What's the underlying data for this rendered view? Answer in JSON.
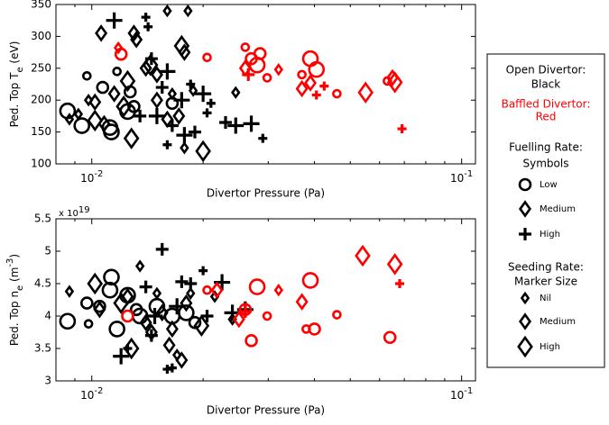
{
  "chart_data": [
    {
      "type": "scatter",
      "xlabel": "Divertor Pressure (Pa)",
      "ylabel": [
        {
          "text": "Ped. Top T"
        },
        {
          "text": "e",
          "shift": "sub"
        },
        {
          "text": " (eV)"
        }
      ],
      "xscale": "log",
      "xlim": [
        0.008,
        0.109
      ],
      "xticks": [
        {
          "value": 0.01,
          "label": "10",
          "exponent": "-2"
        },
        {
          "value": 0.1,
          "label": "10",
          "exponent": "-1"
        }
      ],
      "xminor_ticks": [
        0.009,
        0.02,
        0.03,
        0.04,
        0.05,
        0.06,
        0.07,
        0.08,
        0.09
      ],
      "ylim": [
        100,
        350
      ],
      "yticks": [
        100,
        150,
        200,
        250,
        300,
        350
      ],
      "grid": false,
      "series": [
        {
          "color": "#000000",
          "marker": "o",
          "x": [
            0.0086,
            0.0094,
            0.0097,
            0.0107,
            0.0112,
            0.0113,
            0.0125,
            0.0127,
            0.0117,
            0.013,
            0.0165
          ],
          "values": [
            183,
            160,
            238,
            220,
            157,
            150,
            182,
            213,
            245,
            190,
            195
          ],
          "sizes": [
            "large",
            "large",
            "small",
            "medium",
            "large",
            "large",
            "large",
            "medium",
            "small",
            "medium",
            "medium"
          ]
        },
        {
          "color": "#000000",
          "marker": "d",
          "x": [
            0.0087,
            0.0092,
            0.0098,
            0.0102,
            0.0106,
            0.0102,
            0.0108,
            0.0115,
            0.0122,
            0.0125,
            0.0128,
            0.0132,
            0.013,
            0.014,
            0.0144,
            0.015,
            0.016,
            0.0172,
            0.0175,
            0.0178,
            0.0178,
            0.0182,
            0.0165,
            0.0188,
            0.02,
            0.0245,
            0.015,
            0.016
          ],
          "values": [
            170,
            178,
            200,
            197,
            305,
            168,
            163,
            210,
            190,
            230,
            140,
            295,
            305,
            250,
            255,
            240,
            340,
            175,
            285,
            125,
            275,
            340,
            210,
            215,
            120,
            212,
            200,
            170
          ],
          "sizes": [
            "small",
            "small",
            "small",
            "medium",
            "medium",
            "large",
            "medium",
            "medium",
            "large",
            "large",
            "large",
            "medium",
            "medium",
            "medium",
            "large",
            "medium",
            "small",
            "medium",
            "large",
            "small",
            "medium",
            "small",
            "small",
            "small",
            "large",
            "small",
            "medium",
            "medium"
          ]
        },
        {
          "color": "#000000",
          "marker": "+",
          "x": [
            0.0115,
            0.014,
            0.0142,
            0.0145,
            0.016,
            0.015,
            0.0165,
            0.0175,
            0.0178,
            0.019,
            0.02,
            0.0205,
            0.021,
            0.023,
            0.0245,
            0.027,
            0.029,
            0.0135,
            0.0155,
            0.0185,
            0.016
          ],
          "values": [
            325,
            330,
            315,
            265,
            245,
            175,
            160,
            200,
            145,
            150,
            210,
            180,
            195,
            165,
            160,
            163,
            140,
            175,
            220,
            225,
            130
          ],
          "sizes": [
            "large",
            "small",
            "small",
            "medium",
            "large",
            "large",
            "medium",
            "large",
            "large",
            "medium",
            "large",
            "small",
            "small",
            "medium",
            "large",
            "large",
            "small",
            "medium",
            "medium",
            "small",
            "small"
          ]
        },
        {
          "color": "#ff0000",
          "marker": "o",
          "x": [
            0.012,
            0.0205,
            0.026,
            0.027,
            0.028,
            0.0285,
            0.0298,
            0.037,
            0.039,
            0.0405,
            0.046,
            0.063
          ],
          "values": [
            272,
            267,
            283,
            265,
            255,
            273,
            235,
            240,
            265,
            248,
            210,
            230
          ],
          "sizes": [
            "medium",
            "small",
            "small",
            "medium",
            "large",
            "medium",
            "small",
            "small",
            "large",
            "large",
            "small",
            "small"
          ]
        },
        {
          "color": "#ff0000",
          "marker": "d",
          "x": [
            0.0118,
            0.026,
            0.032,
            0.037,
            0.039,
            0.055,
            0.065,
            0.066
          ],
          "values": [
            282,
            250,
            248,
            218,
            227,
            212,
            235,
            228
          ],
          "sizes": [
            "small",
            "medium",
            "small",
            "medium",
            "medium",
            "large",
            "medium",
            "large"
          ]
        },
        {
          "color": "#ff0000",
          "marker": "+",
          "x": [
            0.0265,
            0.0405,
            0.0425,
            0.069
          ],
          "values": [
            240,
            208,
            222,
            155
          ],
          "sizes": [
            "medium",
            "small",
            "small",
            "small"
          ]
        }
      ]
    },
    {
      "type": "scatter",
      "xlabel": "Divertor Pressure (Pa)",
      "ylabel": [
        {
          "text": "Ped. Top n"
        },
        {
          "text": "e",
          "shift": "sub"
        },
        {
          "text": " (m"
        },
        {
          "text": "-3",
          "shift": "super"
        },
        {
          "text": ")"
        }
      ],
      "yscale_label": {
        "text": "x 10",
        "exponent": "19"
      },
      "xscale": "log",
      "xlim": [
        0.008,
        0.109
      ],
      "xticks": [
        {
          "value": 0.01,
          "label": "10",
          "exponent": "-2"
        },
        {
          "value": 0.1,
          "label": "10",
          "exponent": "-1"
        }
      ],
      "xminor_ticks": [
        0.009,
        0.02,
        0.03,
        0.04,
        0.05,
        0.06,
        0.07,
        0.08,
        0.09
      ],
      "ylim": [
        3,
        5.5
      ],
      "yticks": [
        3,
        3.5,
        4,
        4.5,
        5,
        5.5
      ],
      "grid": false,
      "series": [
        {
          "color": "#000000",
          "marker": "o",
          "x": [
            0.0086,
            0.0097,
            0.0098,
            0.0105,
            0.0112,
            0.0113,
            0.0117,
            0.0125,
            0.0132,
            0.0135,
            0.015,
            0.0165,
            0.018,
            0.019
          ],
          "values": [
            3.92,
            4.2,
            3.88,
            4.15,
            4.4,
            4.6,
            3.8,
            4.32,
            4.1,
            4.0,
            4.15,
            4.0,
            4.05,
            3.9
          ],
          "sizes": [
            "large",
            "medium",
            "small",
            "medium",
            "large",
            "large",
            "large",
            "large",
            "medium",
            "large",
            "large",
            "large",
            "large",
            "medium"
          ]
        },
        {
          "color": "#000000",
          "marker": "d",
          "x": [
            0.0087,
            0.0102,
            0.0105,
            0.012,
            0.0125,
            0.0128,
            0.0135,
            0.014,
            0.0145,
            0.015,
            0.0155,
            0.0162,
            0.0165,
            0.017,
            0.0175,
            0.018,
            0.0185,
            0.0198,
            0.024,
            0.0215
          ],
          "values": [
            4.38,
            4.5,
            4.1,
            4.2,
            4.3,
            3.5,
            4.77,
            3.9,
            3.75,
            4.35,
            4.05,
            3.55,
            3.8,
            3.4,
            3.32,
            4.2,
            4.35,
            3.85,
            3.95,
            4.3
          ],
          "sizes": [
            "small",
            "large",
            "medium",
            "large",
            "medium",
            "large",
            "small",
            "medium",
            "medium",
            "small",
            "medium",
            "medium",
            "medium",
            "small",
            "medium",
            "medium",
            "small",
            "large",
            "small",
            "small"
          ]
        },
        {
          "color": "#000000",
          "marker": "+",
          "x": [
            0.012,
            0.0125,
            0.014,
            0.0148,
            0.0155,
            0.016,
            0.0165,
            0.0175,
            0.0185,
            0.02,
            0.0205,
            0.0225,
            0.024,
            0.026,
            0.017,
            0.0145
          ],
          "values": [
            3.38,
            3.5,
            4.45,
            4.0,
            5.03,
            3.18,
            3.2,
            4.53,
            4.5,
            4.7,
            4.0,
            4.52,
            4.05,
            4.1,
            4.15,
            3.7
          ],
          "sizes": [
            "large",
            "small",
            "medium",
            "large",
            "medium",
            "small",
            "small",
            "medium",
            "medium",
            "small",
            "medium",
            "large",
            "large",
            "large",
            "large",
            "medium"
          ]
        },
        {
          "color": "#ff0000",
          "marker": "o",
          "x": [
            0.0125,
            0.0205,
            0.026,
            0.027,
            0.028,
            0.0298,
            0.038,
            0.039,
            0.04,
            0.046,
            0.064
          ],
          "values": [
            4.0,
            4.4,
            4.1,
            3.62,
            4.45,
            4.0,
            3.8,
            4.55,
            3.8,
            4.02,
            3.67
          ],
          "sizes": [
            "medium",
            "small",
            "medium",
            "medium",
            "large",
            "small",
            "small",
            "large",
            "medium",
            "small",
            "medium"
          ]
        },
        {
          "color": "#ff0000",
          "marker": "d",
          "x": [
            0.0218,
            0.025,
            0.032,
            0.037,
            0.054,
            0.066
          ],
          "values": [
            4.4,
            3.95,
            4.4,
            4.22,
            4.93,
            4.8
          ],
          "sizes": [
            "medium",
            "medium",
            "small",
            "medium",
            "large",
            "large"
          ]
        },
        {
          "color": "#ff0000",
          "marker": "+",
          "x": [
            0.026,
            0.068
          ],
          "values": [
            4.07,
            4.5
          ],
          "sizes": [
            "medium",
            "small"
          ]
        }
      ]
    }
  ],
  "legend": {
    "position": "right",
    "groups": [
      {
        "heading": [
          "Open Divertor:",
          "Black"
        ],
        "color": "#000000"
      },
      {
        "heading": [
          "Baffled Divertor:",
          "Red"
        ],
        "color": "#ff0000"
      },
      {
        "heading": [
          "Fuelling Rate:",
          "Symbols"
        ],
        "color": "#000000",
        "items": [
          {
            "label": "Low",
            "marker": "o",
            "size": "medium"
          },
          {
            "label": "Medium",
            "marker": "d",
            "size": "medium"
          },
          {
            "label": "High",
            "marker": "+",
            "size": "medium"
          }
        ]
      },
      {
        "heading": [
          "Seeding Rate:",
          "Marker Size"
        ],
        "color": "#000000",
        "items": [
          {
            "label": "Nil",
            "marker": "d",
            "size": "small"
          },
          {
            "label": "Medium",
            "marker": "d",
            "size": "medium"
          },
          {
            "label": "High",
            "marker": "d",
            "size": "large"
          }
        ]
      }
    ]
  }
}
